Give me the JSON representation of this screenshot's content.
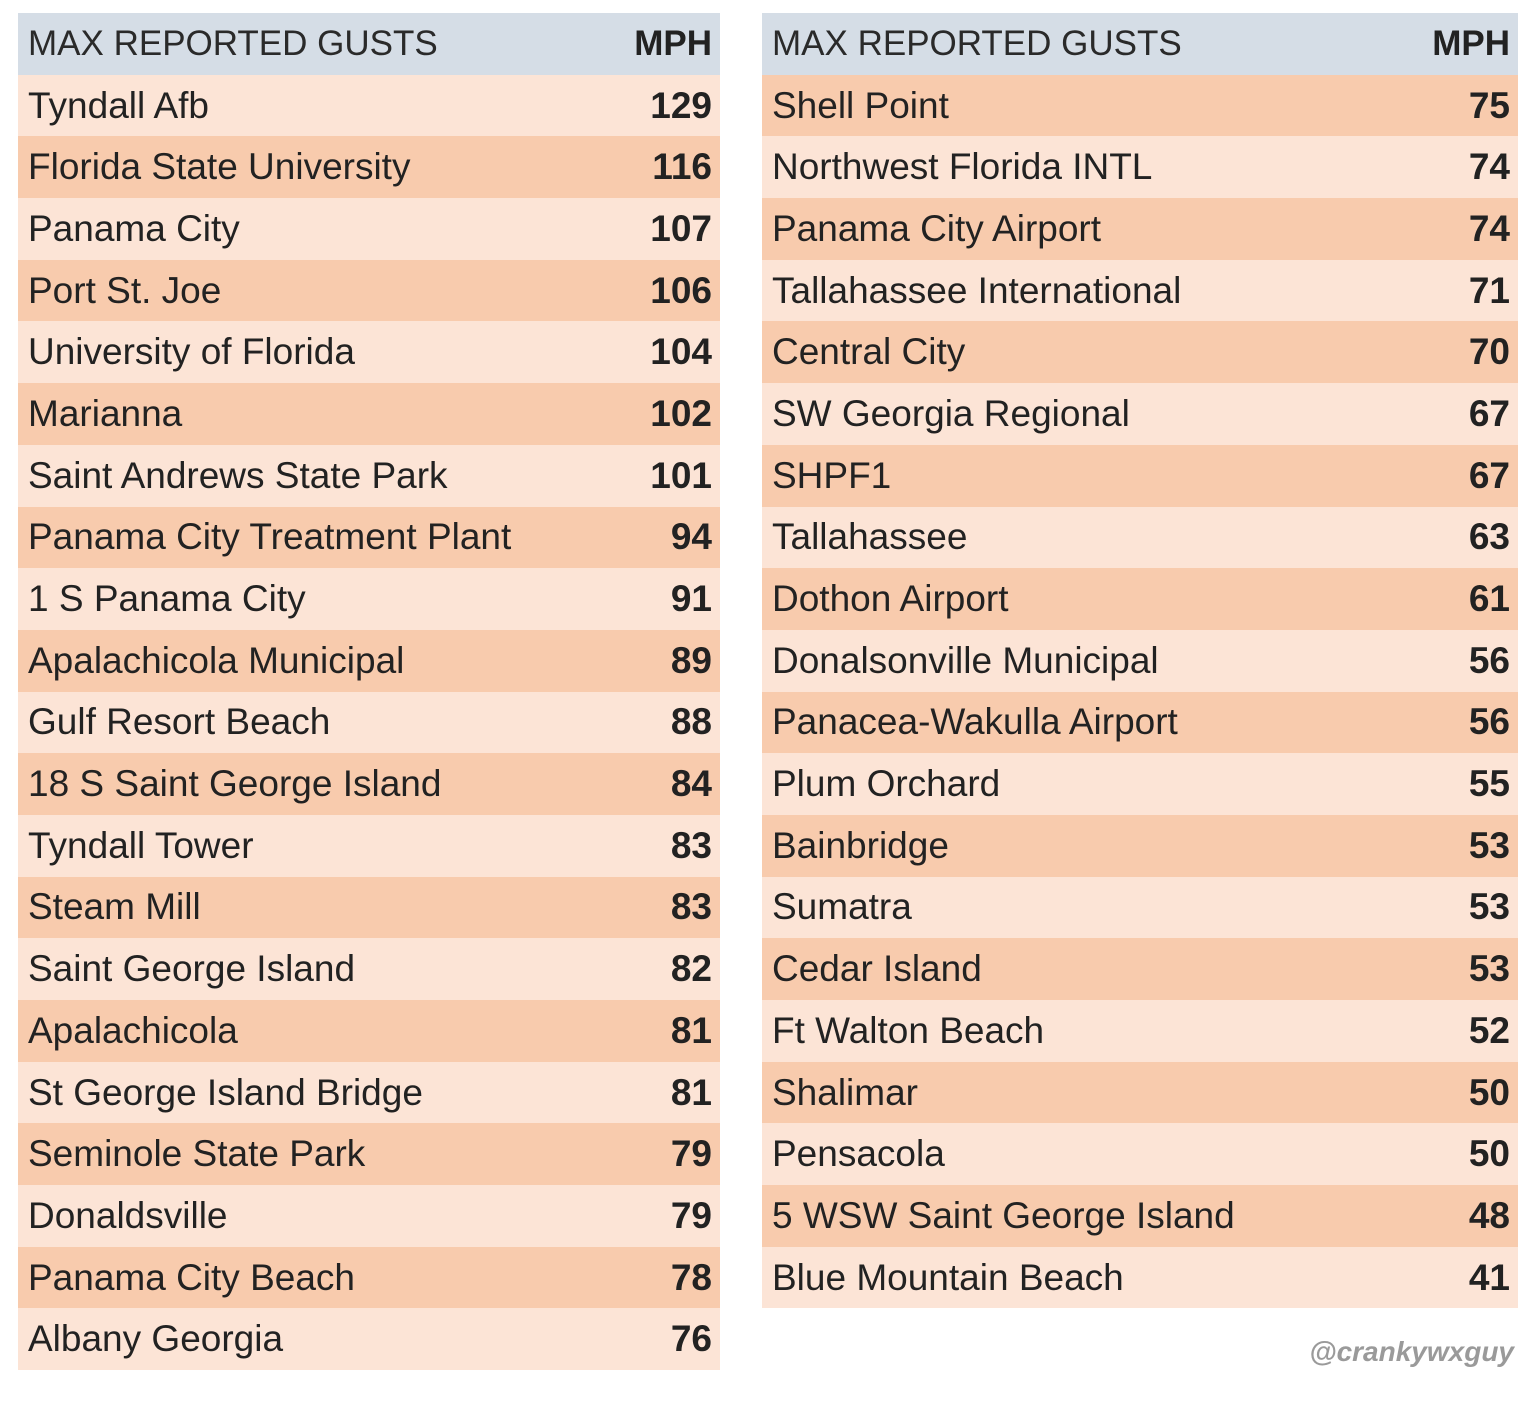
{
  "header": {
    "location": "MAX REPORTED GUSTS",
    "unit": "MPH"
  },
  "left_table": [
    {
      "location": "Tyndall Afb",
      "mph": 129
    },
    {
      "location": "Florida State University",
      "mph": 116
    },
    {
      "location": "Panama City",
      "mph": 107
    },
    {
      "location": "Port St. Joe",
      "mph": 106
    },
    {
      "location": "University of Florida",
      "mph": 104
    },
    {
      "location": "Marianna",
      "mph": 102
    },
    {
      "location": "Saint Andrews State Park",
      "mph": 101
    },
    {
      "location": "Panama City Treatment Plant",
      "mph": 94
    },
    {
      "location": "1 S Panama City",
      "mph": 91
    },
    {
      "location": "Apalachicola Municipal",
      "mph": 89
    },
    {
      "location": "Gulf Resort Beach",
      "mph": 88
    },
    {
      "location": "18 S Saint George Island",
      "mph": 84
    },
    {
      "location": "Tyndall Tower",
      "mph": 83
    },
    {
      "location": "Steam Mill",
      "mph": 83
    },
    {
      "location": "Saint George Island",
      "mph": 82
    },
    {
      "location": "Apalachicola",
      "mph": 81
    },
    {
      "location": "St George Island Bridge",
      "mph": 81
    },
    {
      "location": "Seminole State Park",
      "mph": 79
    },
    {
      "location": "Donaldsville",
      "mph": 79
    },
    {
      "location": "Panama City Beach",
      "mph": 78
    },
    {
      "location": "Albany Georgia",
      "mph": 76
    }
  ],
  "right_table": [
    {
      "location": "Shell Point",
      "mph": 75
    },
    {
      "location": "Northwest Florida INTL",
      "mph": 74
    },
    {
      "location": "Panama City Airport",
      "mph": 74
    },
    {
      "location": "Tallahassee International",
      "mph": 71
    },
    {
      "location": "Central City",
      "mph": 70
    },
    {
      "location": "SW Georgia Regional",
      "mph": 67
    },
    {
      "location": "SHPF1",
      "mph": 67
    },
    {
      "location": "Tallahassee",
      "mph": 63
    },
    {
      "location": "Dothon Airport",
      "mph": 61
    },
    {
      "location": "Donalsonville Municipal",
      "mph": 56
    },
    {
      "location": "Panacea-Wakulla Airport",
      "mph": 56
    },
    {
      "location": "Plum Orchard",
      "mph": 55
    },
    {
      "location": "Bainbridge",
      "mph": 53
    },
    {
      "location": "Sumatra",
      "mph": 53
    },
    {
      "location": "Cedar Island",
      "mph": 53
    },
    {
      "location": "Ft Walton Beach",
      "mph": 52
    },
    {
      "location": "Shalimar",
      "mph": 50
    },
    {
      "location": "Pensacola",
      "mph": 50
    },
    {
      "location": "5 WSW Saint George Island",
      "mph": 48
    },
    {
      "location": "Blue Mountain Beach",
      "mph": 41
    }
  ],
  "credit": "@crankywxguy",
  "colors": {
    "header": "#d5dde6",
    "row_light": "#fce4d6",
    "row_dark": "#f8cbad"
  }
}
